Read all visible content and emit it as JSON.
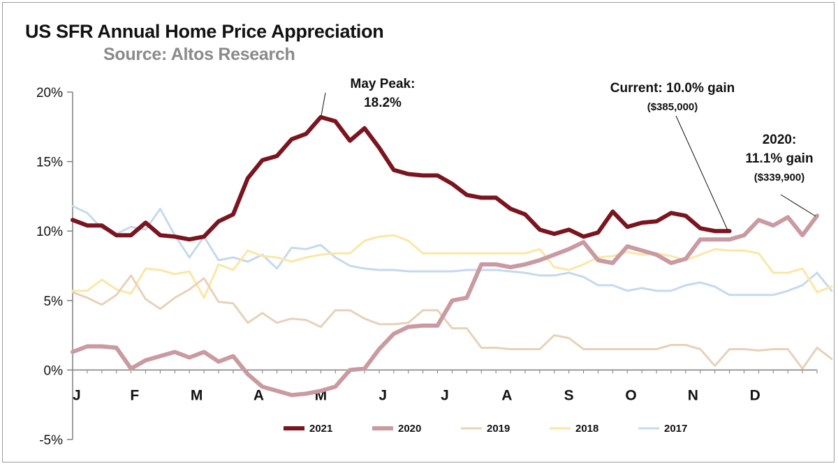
{
  "chart_data": {
    "type": "line",
    "title": "US SFR Annual Home Price Appreciation",
    "subtitle": "Source: Altos Research",
    "x_tick_labels": [
      "J",
      "F",
      "M",
      "A",
      "M",
      "J",
      "J",
      "A",
      "S",
      "O",
      "N",
      "D"
    ],
    "y_ticks": [
      20,
      15,
      10,
      5,
      0,
      -5
    ],
    "y_tick_labels": [
      "20%",
      "15%",
      "10%",
      "5%",
      "0%",
      "-5%"
    ],
    "ylim": [
      -5,
      20
    ],
    "xlim": [
      0,
      51
    ],
    "xlabel": "",
    "ylabel": "",
    "series": [
      {
        "name": "2017",
        "color": "#c5d9ee",
        "width": 3,
        "values": [
          11.8,
          11.3,
          10.2,
          9.8,
          10.3,
          10.1,
          11.6,
          9.7,
          8.1,
          9.6,
          7.9,
          8.1,
          7.8,
          8.3,
          7.3,
          8.8,
          8.7,
          9.0,
          8.1,
          7.5,
          7.3,
          7.2,
          7.2,
          7.1,
          7.1,
          7.1,
          7.1,
          7.2,
          7.2,
          7.2,
          7.1,
          7.0,
          6.8,
          6.8,
          7.0,
          6.7,
          6.1,
          6.1,
          5.7,
          5.9,
          5.7,
          5.7,
          6.1,
          6.3,
          6.0,
          5.4,
          5.4,
          5.4,
          5.4,
          5.7,
          6.1,
          7.0,
          5.7
        ]
      },
      {
        "name": "2018",
        "color": "#fbe7a5",
        "width": 3,
        "values": [
          5.7,
          5.7,
          6.5,
          5.8,
          5.5,
          7.3,
          7.2,
          6.9,
          7.1,
          5.2,
          7.6,
          7.2,
          8.6,
          8.2,
          8.1,
          7.8,
          8.1,
          8.3,
          8.4,
          8.4,
          9.3,
          9.6,
          9.7,
          9.3,
          8.4,
          8.4,
          8.4,
          8.4,
          8.4,
          8.4,
          8.4,
          8.4,
          8.7,
          7.4,
          7.2,
          7.6,
          8.1,
          8.2,
          8.5,
          8.3,
          8.4,
          8.2,
          7.9,
          8.3,
          8.7,
          8.6,
          8.6,
          8.4,
          7.0,
          7.0,
          7.3,
          5.6,
          6.0
        ]
      },
      {
        "name": "2019",
        "color": "#e8d1b9",
        "width": 3,
        "values": [
          5.6,
          5.2,
          4.7,
          5.4,
          6.8,
          5.1,
          4.4,
          5.2,
          5.8,
          6.6,
          4.9,
          4.8,
          3.4,
          4.1,
          3.4,
          3.7,
          3.6,
          3.1,
          4.3,
          4.3,
          3.7,
          3.3,
          3.3,
          3.4,
          4.3,
          4.3,
          3.0,
          3.0,
          1.6,
          1.6,
          1.5,
          1.5,
          1.5,
          2.5,
          2.3,
          1.5,
          1.5,
          1.5,
          1.5,
          1.5,
          1.5,
          1.8,
          1.8,
          1.5,
          0.3,
          1.5,
          1.5,
          1.4,
          1.5,
          1.5,
          0.1,
          1.6,
          0.8
        ]
      },
      {
        "name": "2020",
        "color": "#c99aa1",
        "width": 6,
        "values": [
          1.3,
          1.7,
          1.7,
          1.6,
          0.1,
          0.7,
          1.0,
          1.3,
          0.9,
          1.3,
          0.6,
          1.0,
          -0.3,
          -1.2,
          -1.5,
          -1.8,
          -1.7,
          -1.5,
          -1.2,
          0.0,
          0.1,
          1.5,
          2.6,
          3.1,
          3.2,
          3.2,
          5.0,
          5.2,
          7.6,
          7.6,
          7.4,
          7.6,
          7.9,
          8.3,
          8.7,
          9.2,
          7.9,
          7.7,
          8.9,
          8.6,
          8.3,
          7.7,
          8.0,
          9.4,
          9.4,
          9.4,
          9.7,
          10.8,
          10.4,
          11.0,
          9.7,
          11.1
        ]
      },
      {
        "name": "2021",
        "color": "#7a1520",
        "width": 6,
        "values": [
          10.8,
          10.4,
          10.4,
          9.7,
          9.7,
          10.6,
          9.7,
          9.6,
          9.4,
          9.6,
          10.7,
          11.2,
          13.8,
          15.1,
          15.4,
          16.6,
          17.0,
          18.2,
          17.9,
          16.5,
          17.4,
          16.0,
          14.4,
          14.1,
          14.0,
          14.0,
          13.4,
          12.6,
          12.4,
          12.4,
          11.6,
          11.2,
          10.1,
          9.8,
          10.1,
          9.6,
          9.9,
          11.4,
          10.3,
          10.6,
          10.7,
          11.3,
          11.1,
          10.2,
          10.0,
          10.0
        ]
      }
    ],
    "annotations": [
      {
        "line1": "May Peak:",
        "line2": "18.2%"
      },
      {
        "line1": "Current: 10.0% gain",
        "line2": "($385,000)"
      },
      {
        "line1": "2020:",
        "line2": "11.1% gain",
        "line3": "($339,900)"
      }
    ],
    "legend": {
      "position": "bottom",
      "order": [
        "2021",
        "2020",
        "2019",
        "2018",
        "2017"
      ]
    }
  }
}
